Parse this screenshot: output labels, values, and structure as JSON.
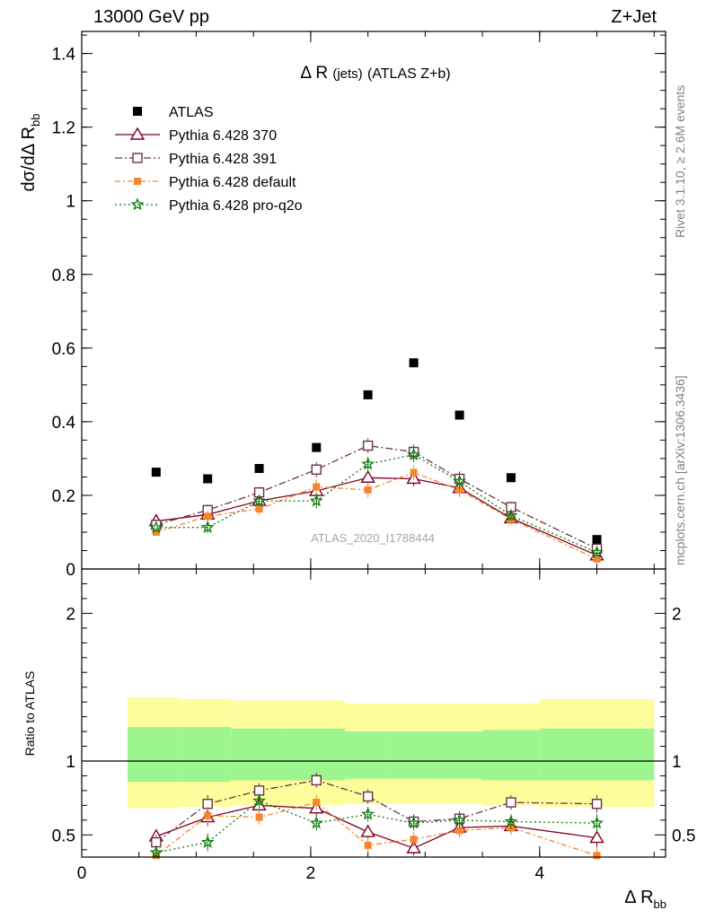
{
  "header": {
    "left": "13000 GeV pp",
    "right": "Z+Jet"
  },
  "side": {
    "rivet": "Rivet 3.1.10, ≥ 2.6M events",
    "mcplots": "mcplots.cern.ch [arXiv:1306.3436]"
  },
  "plot": {
    "title_main": "Δ R",
    "title_sub": "(jets)",
    "title_tail": "(ATLAS Z+b)",
    "watermark": "ATLAS_2020_I1788444",
    "ylabel_main": "dσ/dΔ R",
    "ylabel_sub": "bb",
    "xlabel_main": "Δ R",
    "xlabel_sub": "bb",
    "ratio_ylabel": "Ratio to ATLAS"
  },
  "colors": {
    "atlas": "#000000",
    "p370": "#800020",
    "p391": "#6b3346",
    "default": "#f5852e",
    "proq2o": "#0a7a0a",
    "band_inner": "#9cf58f",
    "band_outer": "#fdfd9b"
  },
  "chart_data": [
    {
      "type": "scatter",
      "panel": "main",
      "xlim": [
        0,
        5.1
      ],
      "ylim": [
        0,
        1.46
      ],
      "yticks": [
        0,
        0.2,
        0.4,
        0.6,
        0.8,
        1,
        1.2,
        1.4
      ],
      "ytick_labels": [
        "0",
        "0.2",
        "0.4",
        "0.6",
        "0.8",
        "1",
        "1.2",
        "1.4"
      ],
      "legend_position": "top-left",
      "x": [
        0.65,
        1.1,
        1.55,
        2.05,
        2.5,
        2.9,
        3.3,
        3.75,
        4.5
      ],
      "series": [
        {
          "name": "ATLAS",
          "marker": "square-filled",
          "values": [
            0.263,
            0.245,
            0.273,
            0.33,
            0.473,
            0.56,
            0.418,
            0.248,
            0.08
          ]
        },
        {
          "name": "Pythia 6.428 370",
          "marker": "triangle-open",
          "values": [
            0.13,
            0.148,
            0.185,
            0.212,
            0.248,
            0.245,
            0.22,
            0.138,
            0.037
          ]
        },
        {
          "name": "Pythia 6.428 391",
          "marker": "square-open",
          "values": [
            0.12,
            0.16,
            0.208,
            0.27,
            0.335,
            0.318,
            0.245,
            0.168,
            0.055
          ]
        },
        {
          "name": "Pythia 6.428 default",
          "marker": "square-filled",
          "values": [
            0.1,
            0.143,
            0.163,
            0.223,
            0.215,
            0.262,
            0.215,
            0.135,
            0.027
          ]
        },
        {
          "name": "Pythia 6.428 pro-q2o",
          "marker": "star",
          "values": [
            0.112,
            0.113,
            0.185,
            0.185,
            0.285,
            0.31,
            0.238,
            0.145,
            0.045
          ]
        }
      ],
      "errors": [
        0,
        0.015,
        0.015,
        0.02,
        0.02,
        0.02,
        0.02,
        0.015,
        0.01
      ]
    },
    {
      "type": "scatter",
      "panel": "ratio",
      "xlim": [
        0,
        5.1
      ],
      "ylim": [
        0.35,
        2.3
      ],
      "yticks": [
        0.5,
        1,
        2
      ],
      "ytick_labels": [
        "0.5",
        "1",
        "2"
      ],
      "xticks": [
        0,
        2,
        4
      ],
      "xtick_labels": [
        "0",
        "2",
        "4"
      ],
      "reference_line": 1,
      "band_bins": [
        [
          0.4,
          0.85
        ],
        [
          0.85,
          1.3
        ],
        [
          1.3,
          1.8
        ],
        [
          1.8,
          2.3
        ],
        [
          2.3,
          2.7
        ],
        [
          2.7,
          3.1
        ],
        [
          3.1,
          3.5
        ],
        [
          3.5,
          4.0
        ],
        [
          4.0,
          5.0
        ]
      ],
      "band_inner": [
        [
          0.86,
          1.23
        ],
        [
          0.86,
          1.23
        ],
        [
          0.87,
          1.22
        ],
        [
          0.87,
          1.22
        ],
        [
          0.88,
          1.2
        ],
        [
          0.88,
          1.2
        ],
        [
          0.88,
          1.2
        ],
        [
          0.87,
          1.21
        ],
        [
          0.87,
          1.22
        ]
      ],
      "band_outer": [
        [
          0.68,
          1.43
        ],
        [
          0.69,
          1.42
        ],
        [
          0.7,
          1.41
        ],
        [
          0.7,
          1.41
        ],
        [
          0.71,
          1.39
        ],
        [
          0.71,
          1.39
        ],
        [
          0.71,
          1.39
        ],
        [
          0.7,
          1.39
        ],
        [
          0.69,
          1.42
        ]
      ],
      "x": [
        0.65,
        1.1,
        1.55,
        2.05,
        2.5,
        2.9,
        3.3,
        3.75,
        4.5
      ],
      "series": [
        {
          "name": "Pythia 6.428 370",
          "values": [
            0.49,
            0.62,
            0.7,
            0.68,
            0.52,
            0.41,
            0.55,
            0.56,
            0.48
          ]
        },
        {
          "name": "Pythia 6.428 391",
          "values": [
            0.45,
            0.71,
            0.8,
            0.87,
            0.76,
            0.59,
            0.61,
            0.72,
            0.71
          ]
        },
        {
          "name": "Pythia 6.428 default",
          "values": [
            0.33,
            0.63,
            0.62,
            0.72,
            0.43,
            0.47,
            0.53,
            0.55,
            0.36
          ]
        },
        {
          "name": "Pythia 6.428 pro-q2o",
          "values": [
            0.38,
            0.45,
            0.73,
            0.58,
            0.64,
            0.58,
            0.6,
            0.59,
            0.58
          ]
        }
      ],
      "errors": [
        0.05,
        0.06,
        0.05,
        0.05,
        0.05,
        0.05,
        0.05,
        0.05,
        0.06
      ]
    }
  ]
}
